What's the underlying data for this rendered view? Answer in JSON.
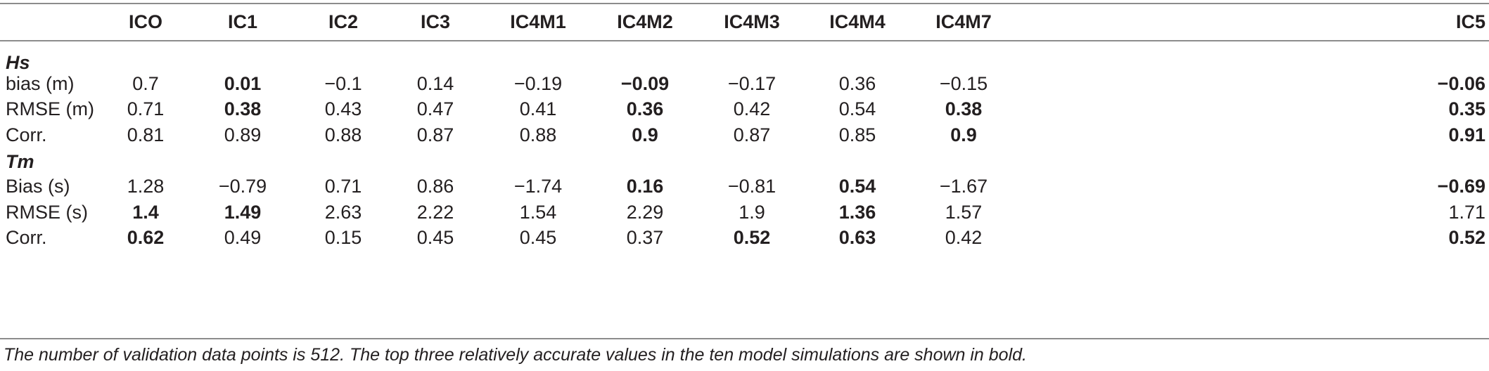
{
  "table": {
    "columns": [
      "ICO",
      "IC1",
      "IC2",
      "IC3",
      "IC4M1",
      "IC4M2",
      "IC4M3",
      "IC4M4",
      "IC4M7",
      "IC5"
    ],
    "rows": [
      {
        "type": "section",
        "label": "Hs"
      },
      {
        "type": "data",
        "label": "bias (m)",
        "values": [
          "0.7",
          "0.01",
          "−0.1",
          "0.14",
          "−0.19",
          "−0.09",
          "−0.17",
          "0.36",
          "−0.15",
          "−0.06"
        ],
        "bold": [
          false,
          true,
          false,
          false,
          false,
          true,
          false,
          false,
          false,
          true
        ]
      },
      {
        "type": "data",
        "label": "RMSE (m)",
        "values": [
          "0.71",
          "0.38",
          "0.43",
          "0.47",
          "0.41",
          "0.36",
          "0.42",
          "0.54",
          "0.38",
          "0.35"
        ],
        "bold": [
          false,
          true,
          false,
          false,
          false,
          true,
          false,
          false,
          true,
          true
        ]
      },
      {
        "type": "data",
        "label": "Corr.",
        "values": [
          "0.81",
          "0.89",
          "0.88",
          "0.87",
          "0.88",
          "0.9",
          "0.87",
          "0.85",
          "0.9",
          "0.91"
        ],
        "bold": [
          false,
          false,
          false,
          false,
          false,
          true,
          false,
          false,
          true,
          true
        ]
      },
      {
        "type": "section",
        "label": "Tm"
      },
      {
        "type": "data",
        "label": "Bias (s)",
        "values": [
          "1.28",
          "−0.79",
          "0.71",
          "0.86",
          "−1.74",
          "0.16",
          "−0.81",
          "0.54",
          "−1.67",
          "−0.69"
        ],
        "bold": [
          false,
          false,
          false,
          false,
          false,
          true,
          false,
          true,
          false,
          true
        ]
      },
      {
        "type": "data",
        "label": "RMSE (s)",
        "values": [
          "1.4",
          "1.49",
          "2.63",
          "2.22",
          "1.54",
          "2.29",
          "1.9",
          "1.36",
          "1.57",
          "1.71"
        ],
        "bold": [
          true,
          true,
          false,
          false,
          false,
          false,
          false,
          true,
          false,
          false
        ]
      },
      {
        "type": "data",
        "label": "Corr.",
        "values": [
          "0.62",
          "0.49",
          "0.15",
          "0.45",
          "0.45",
          "0.37",
          "0.52",
          "0.63",
          "0.42",
          "0.52"
        ],
        "bold": [
          true,
          false,
          false,
          false,
          false,
          false,
          true,
          true,
          false,
          true
        ]
      }
    ],
    "footnote": "The number of validation data points is 512. The top three relatively accurate values in the ten model simulations are shown in bold."
  }
}
